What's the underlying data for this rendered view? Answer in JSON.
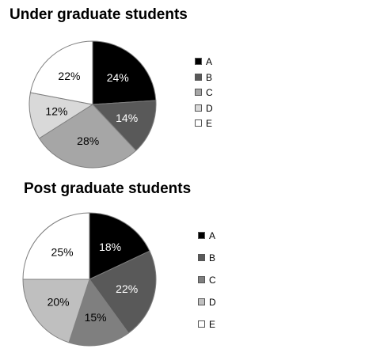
{
  "chart_data": [
    {
      "type": "pie",
      "title": "Under graduate students",
      "categories": [
        "A",
        "B",
        "C",
        "D",
        "E"
      ],
      "values": [
        24,
        14,
        28,
        12,
        22
      ],
      "value_labels": [
        "24%",
        "14%",
        "28%",
        "12%",
        "22%"
      ],
      "colors": [
        "#000000",
        "#595959",
        "#a6a6a6",
        "#d9d9d9",
        "#ffffff"
      ],
      "label_colors": [
        "#ffffff",
        "#ffffff",
        "#000000",
        "#000000",
        "#000000"
      ],
      "legend_position": "right"
    },
    {
      "type": "pie",
      "title": "Post graduate students",
      "categories": [
        "A",
        "B",
        "C",
        "D",
        "E"
      ],
      "values": [
        18,
        22,
        15,
        20,
        25
      ],
      "value_labels": [
        "18%",
        "22%",
        "15%",
        "20%",
        "25%"
      ],
      "colors": [
        "#000000",
        "#595959",
        "#7f7f7f",
        "#bfbfbf",
        "#ffffff"
      ],
      "label_colors": [
        "#ffffff",
        "#ffffff",
        "#000000",
        "#000000",
        "#000000"
      ],
      "legend_position": "right"
    }
  ]
}
